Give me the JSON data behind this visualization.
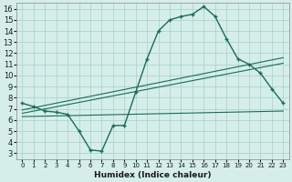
{
  "xlabel": "Humidex (Indice chaleur)",
  "bg_color": "#d5eeea",
  "grid_color": "#aed4cc",
  "line_color": "#1a6b5a",
  "xlim": [
    -0.5,
    23.5
  ],
  "ylim": [
    2.5,
    16.5
  ],
  "yticks": [
    3,
    4,
    5,
    6,
    7,
    8,
    9,
    10,
    11,
    12,
    13,
    14,
    15,
    16
  ],
  "xticks": [
    0,
    1,
    2,
    3,
    4,
    5,
    6,
    7,
    8,
    9,
    10,
    11,
    12,
    13,
    14,
    15,
    16,
    17,
    18,
    19,
    20,
    21,
    22,
    23
  ],
  "main_data": [
    [
      0,
      7.5
    ],
    [
      1,
      7.2
    ],
    [
      2,
      6.8
    ],
    [
      3,
      6.7
    ],
    [
      4,
      6.5
    ],
    [
      5,
      5.0
    ],
    [
      6,
      3.3
    ],
    [
      7,
      3.2
    ],
    [
      8,
      5.5
    ],
    [
      9,
      5.5
    ],
    [
      10,
      8.5
    ],
    [
      11,
      11.5
    ],
    [
      12,
      14.0
    ],
    [
      13,
      15.0
    ],
    [
      14,
      15.3
    ],
    [
      15,
      15.5
    ],
    [
      16,
      16.2
    ],
    [
      17,
      15.3
    ],
    [
      18,
      13.3
    ],
    [
      19,
      11.5
    ],
    [
      20,
      11.0
    ],
    [
      21,
      10.2
    ],
    [
      22,
      8.8
    ],
    [
      23,
      7.5
    ]
  ],
  "trend_lines": [
    {
      "x0": 0,
      "y0": 6.9,
      "x1": 23,
      "y1": 11.6
    },
    {
      "x0": 0,
      "y0": 6.6,
      "x1": 23,
      "y1": 11.1
    },
    {
      "x0": 0,
      "y0": 6.3,
      "x1": 23,
      "y1": 6.8
    }
  ]
}
